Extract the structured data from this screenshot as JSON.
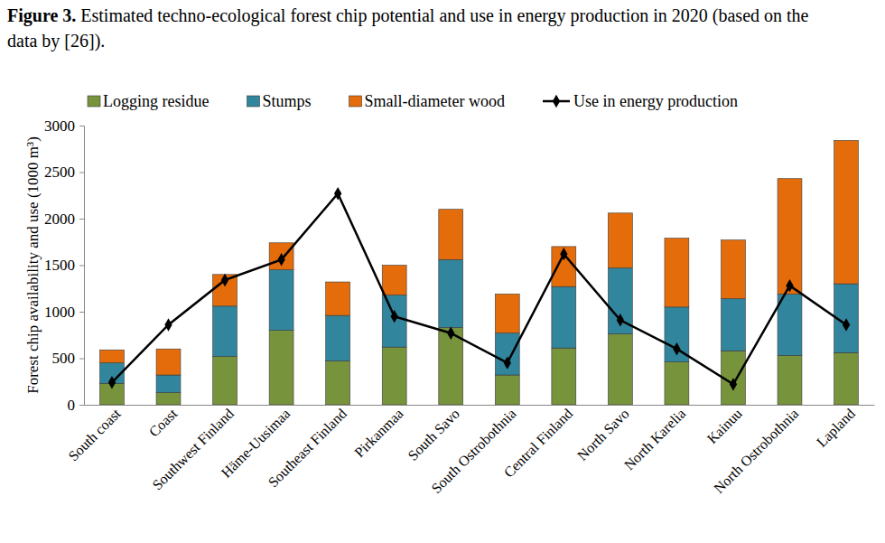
{
  "chart_data": {
    "type": "bar",
    "title": "Figure 3. Estimated techno-ecological forest chip potential and use in energy production in 2020 (based on the data by [26]).",
    "y_label": "Forest chip availability and use (1000 m³)",
    "categories": [
      "South coast",
      "Coast",
      "Southwest Finland",
      "Häme-Uusimaa",
      "Southeast Finland",
      "Pirkanmaa",
      "South Savo",
      "South Ostrobothnia",
      "Central Finland",
      "North Savo",
      "North Karelia",
      "Kainuu",
      "North Ostrobothnia",
      "Lapland"
    ],
    "series": [
      {
        "name": "Logging residue",
        "type": "bar",
        "color": "#77933c",
        "values": [
          230,
          130,
          520,
          800,
          470,
          620,
          830,
          320,
          610,
          760,
          460,
          580,
          530,
          560
        ]
      },
      {
        "name": "Stumps",
        "type": "bar",
        "color": "#31859c",
        "values": [
          220,
          190,
          540,
          650,
          490,
          560,
          730,
          450,
          660,
          710,
          590,
          560,
          660,
          740
        ]
      },
      {
        "name": "Small-diameter wood",
        "type": "bar",
        "color": "#e46c0a",
        "values": [
          140,
          280,
          340,
          290,
          360,
          320,
          540,
          420,
          430,
          590,
          740,
          630,
          1240,
          1540
        ]
      },
      {
        "name": "Use in energy production",
        "type": "line",
        "color": "#000000",
        "marker": "diamond",
        "line_style": "solid",
        "values": [
          240,
          860,
          1340,
          1560,
          2270,
          950,
          770,
          450,
          1620,
          910,
          600,
          220,
          1280,
          860
        ]
      }
    ],
    "stacked": true,
    "legend": "top",
    "grid": false,
    "ylim": [
      0,
      3000
    ],
    "yticks": [
      0,
      500,
      1000,
      1500,
      2000,
      2500,
      3000
    ]
  }
}
